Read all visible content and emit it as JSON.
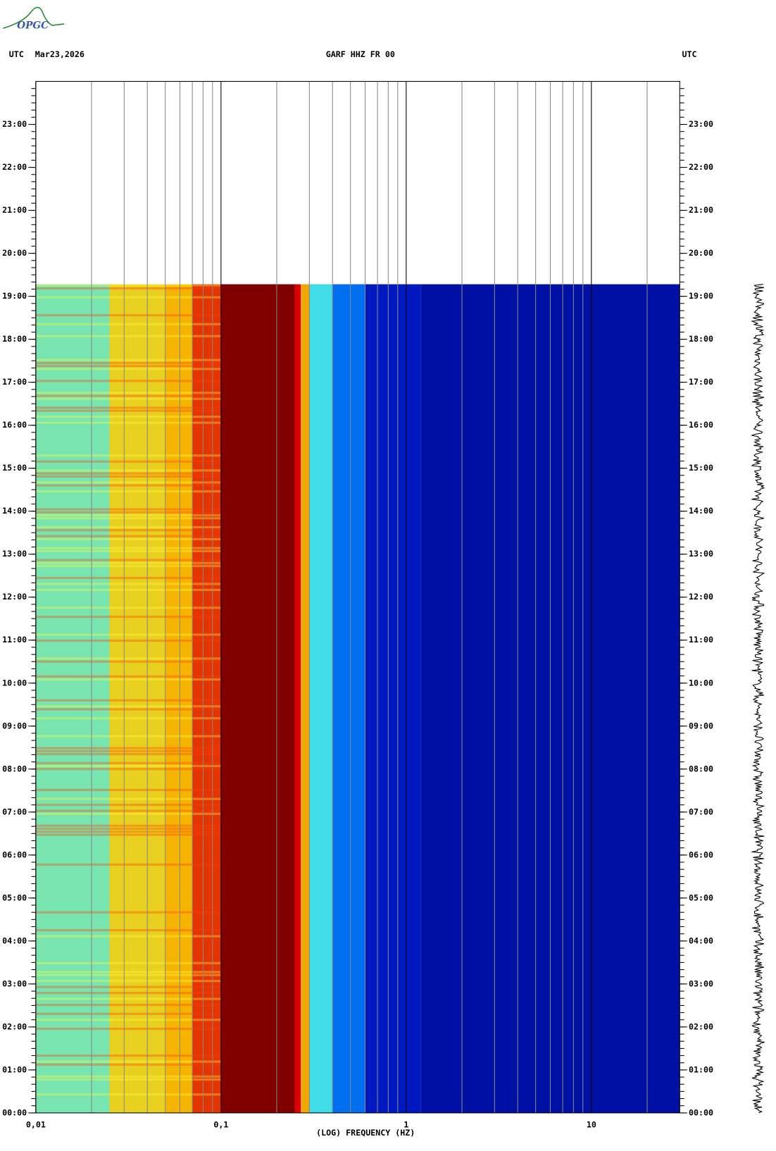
{
  "chart_data": {
    "type": "spectrogram",
    "logo": "OPGC",
    "left_label": "UTC",
    "date": "Mar23,2026",
    "title": "GARF HHZ FR 00",
    "right_label": "UTC",
    "xlabel": "(LOG) FREQUENCY (HZ)",
    "xscale": "log",
    "xlim": [
      0.01,
      30
    ],
    "xticks": [
      {
        "value": 0.01,
        "label": "0,01"
      },
      {
        "value": 0.1,
        "label": "0,1"
      },
      1,
      10
    ],
    "xgrid_minor": [
      0.02,
      0.03,
      0.04,
      0.05,
      0.06,
      0.07,
      0.08,
      0.09,
      0.2,
      0.3,
      0.4,
      0.5,
      0.6,
      0.7,
      0.8,
      0.9,
      2,
      3,
      4,
      5,
      6,
      7,
      8,
      9,
      20
    ],
    "ylim": [
      0,
      24
    ],
    "yticks": [
      {
        "value": 0,
        "label": "00:00"
      },
      {
        "value": 1,
        "label": "01:00"
      },
      {
        "value": 2,
        "label": "02:00"
      },
      {
        "value": 3,
        "label": "03:00"
      },
      {
        "value": 4,
        "label": "04:00"
      },
      {
        "value": 5,
        "label": "05:00"
      },
      {
        "value": 6,
        "label": "06:00"
      },
      {
        "value": 7,
        "label": "07:00"
      },
      {
        "value": 8,
        "label": "08:00"
      },
      {
        "value": 9,
        "label": "09:00"
      },
      {
        "value": 10,
        "label": "10:00"
      },
      {
        "value": 11,
        "label": "11:00"
      },
      {
        "value": 12,
        "label": "12:00"
      },
      {
        "value": 13,
        "label": "13:00"
      },
      {
        "value": 14,
        "label": "14:00"
      },
      {
        "value": 15,
        "label": "15:00"
      },
      {
        "value": 16,
        "label": "16:00"
      },
      {
        "value": 17,
        "label": "17:00"
      },
      {
        "value": 18,
        "label": "18:00"
      },
      {
        "value": 19,
        "label": "19:00"
      },
      {
        "value": 20,
        "label": "20:00"
      },
      {
        "value": 21,
        "label": "21:00"
      },
      {
        "value": 22,
        "label": "22:00"
      },
      {
        "value": 23,
        "label": "23:00"
      }
    ],
    "data_end": 19.28,
    "bands": [
      {
        "lo": 0.01,
        "hi": 0.025,
        "color": "#78e4b0"
      },
      {
        "lo": 0.025,
        "hi": 0.05,
        "color": "#e8d020"
      },
      {
        "lo": 0.05,
        "hi": 0.07,
        "color": "#f4b400"
      },
      {
        "lo": 0.07,
        "hi": 0.1,
        "color": "#e43400"
      },
      {
        "lo": 0.1,
        "hi": 0.25,
        "color": "#800000"
      },
      {
        "lo": 0.25,
        "hi": 0.27,
        "color": "#dc0000"
      },
      {
        "lo": 0.27,
        "hi": 0.3,
        "color": "#f0a800"
      },
      {
        "lo": 0.3,
        "hi": 0.4,
        "color": "#40dce8"
      },
      {
        "lo": 0.4,
        "hi": 0.6,
        "color": "#0070f0"
      },
      {
        "lo": 0.6,
        "hi": 1.2,
        "color": "#0018c0"
      },
      {
        "lo": 1.2,
        "hi": 30,
        "color": "#0010a4"
      }
    ]
  }
}
